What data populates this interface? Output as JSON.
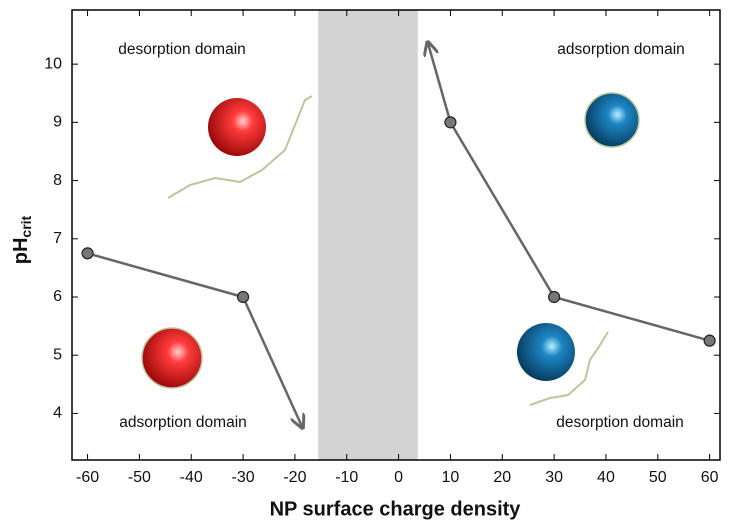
{
  "chart_data": {
    "type": "line",
    "xlabel": "NP surface charge density",
    "ylabel": "pH",
    "ylabel_subscript": "crit",
    "xlim": [
      -63,
      62
    ],
    "ylim": [
      3.2,
      10.93
    ],
    "xticks": [
      -60,
      -50,
      -40,
      -30,
      -20,
      -10,
      0,
      10,
      20,
      30,
      40,
      50,
      60
    ],
    "yticks": [
      4,
      5,
      6,
      7,
      8,
      9,
      10
    ],
    "shaded_region": [
      -15.5,
      3.7
    ],
    "shaded_color": "#d3d3d3",
    "series": [
      {
        "color": "#666666",
        "x": [
          -60,
          -30
        ],
        "values": [
          6.75,
          6.0
        ]
      },
      {
        "color": "#666666",
        "x": [
          60,
          30,
          10
        ],
        "values": [
          5.25,
          6.0,
          9.0
        ]
      }
    ],
    "arrows": [
      {
        "x": [
          -30,
          -18.5
        ],
        "y": [
          6.0,
          3.75
        ]
      },
      {
        "x": [
          10,
          5.6
        ],
        "y": [
          9.0,
          10.38
        ]
      }
    ],
    "annotations": [
      "desorption domain",
      "adsorption domain",
      "adsorption domain",
      "desorption domain"
    ]
  }
}
